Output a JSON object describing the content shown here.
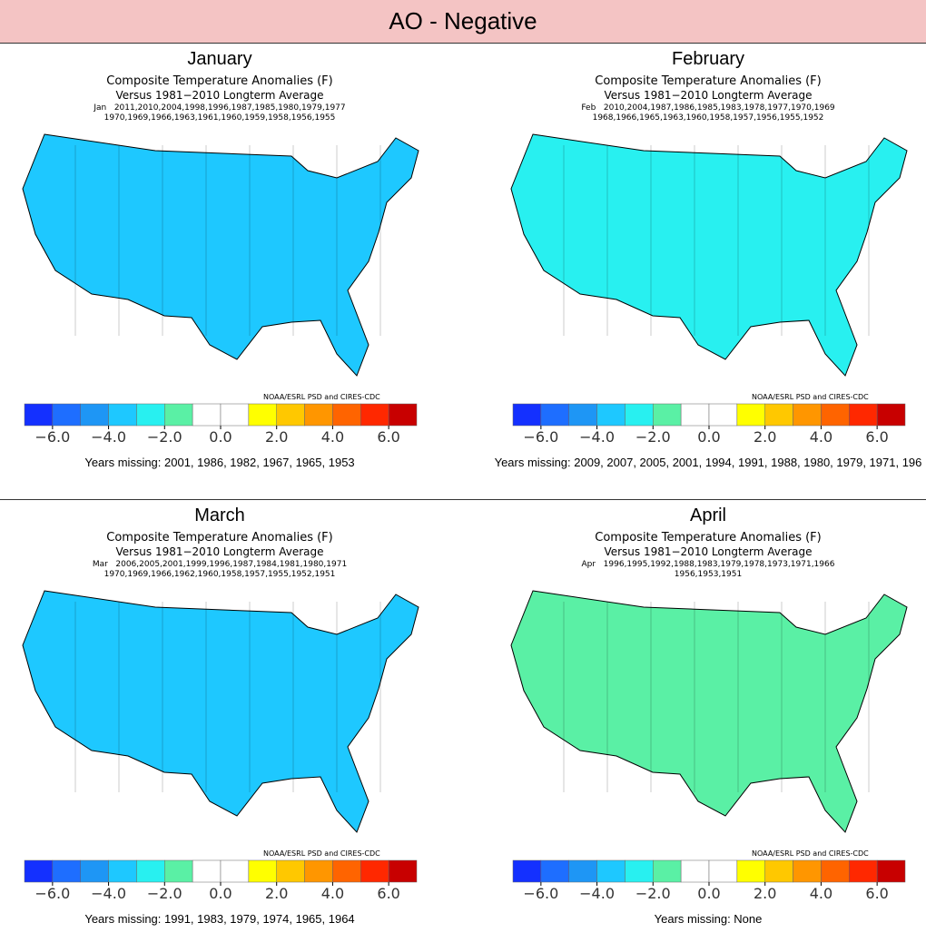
{
  "header": {
    "title": "AO - Negative"
  },
  "legend": {
    "credit": "NOAA/ESRL PSD and CIRES-CDC",
    "colors": [
      "#1430ff",
      "#1e6eff",
      "#1e96f5",
      "#1ec8ff",
      "#28f0f0",
      "#5af0a5",
      "#ffffff",
      "#ffffff",
      "#ffff00",
      "#ffc800",
      "#ff9600",
      "#ff6400",
      "#ff2800",
      "#c80000"
    ],
    "ticks": [
      {
        "value": -6,
        "label": "−6.0"
      },
      {
        "value": -4,
        "label": "−4.0"
      },
      {
        "value": -2,
        "label": "−2.0"
      },
      {
        "value": 0,
        "label": "0.0"
      },
      {
        "value": 2,
        "label": "2.0"
      },
      {
        "value": 4,
        "label": "4.0"
      },
      {
        "value": 6,
        "label": "6.0"
      }
    ],
    "lim": [
      -7,
      7
    ]
  },
  "panels": [
    {
      "month": "January",
      "heading": "Composite Temperature Anomalies (F)",
      "baseline": "Versus 1981−2010 Longterm Average",
      "years1": "Jan   2011,2010,2004,1998,1996,1987,1985,1980,1979,1977",
      "years2": "1970,1969,1966,1963,1961,1960,1959,1958,1956,1955",
      "map_fill": "#1ec8ff",
      "missing": "Years missing: 2001, 1986, 1982, 1967, 1965, 1953"
    },
    {
      "month": "February",
      "heading": "Composite Temperature Anomalies (F)",
      "baseline": "Versus 1981−2010 Longterm Average",
      "years1": "Feb   2010,2004,1987,1986,1985,1983,1978,1977,1970,1969",
      "years2": "1968,1966,1965,1963,1960,1958,1957,1956,1955,1952",
      "map_fill": "#28f0f0",
      "missing": "Years missing: 2009, 2007, 2005, 2001, 1994, 1991, 1988, 1980, 1979, 1971, 196"
    },
    {
      "month": "March",
      "heading": "Composite Temperature Anomalies (F)",
      "baseline": "Versus 1981−2010 Longterm Average",
      "years1": "Mar   2006,2005,2001,1999,1996,1987,1984,1981,1980,1971",
      "years2": "1970,1969,1966,1962,1960,1958,1957,1955,1952,1951",
      "map_fill": "#1ec8ff",
      "missing": "Years missing: 1991, 1983, 1979, 1974, 1965, 1964"
    },
    {
      "month": "April",
      "heading": "Composite Temperature Anomalies (F)",
      "baseline": "Versus 1981−2010 Longterm Average",
      "years1": "Apr   1996,1995,1992,1988,1983,1979,1978,1973,1971,1966",
      "years2": "1956,1953,1951",
      "map_fill": "#5af0a5",
      "missing": "Years missing: None"
    }
  ]
}
